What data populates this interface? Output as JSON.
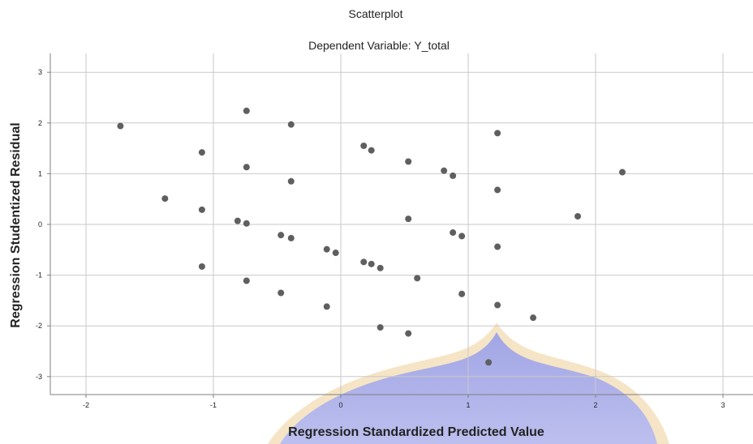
{
  "chart_data": {
    "type": "scatter",
    "title": "Scatterplot",
    "subtitle": "Dependent Variable: Y_total",
    "xlabel": "Regression Standardized Predicted Value",
    "ylabel": "Regression Studentized Residual",
    "xlim": [
      -2.3,
      3.1
    ],
    "ylim": [
      -3.3,
      3.3
    ],
    "xticks": [
      -2,
      -1,
      0,
      1,
      2,
      3
    ],
    "yticks": [
      -3,
      -2,
      -1,
      0,
      1,
      2,
      3
    ],
    "xtick_labels": [
      "-2",
      "-1",
      "0",
      "1",
      "2",
      "3"
    ],
    "ytick_labels": [
      "-3",
      "-2",
      "-1",
      "0",
      "1",
      "2",
      "3"
    ],
    "grid": true,
    "point_color": "#5f5f5f",
    "points": [
      {
        "x": -1.73,
        "y": 1.94
      },
      {
        "x": -1.38,
        "y": 0.51
      },
      {
        "x": -1.09,
        "y": 1.42
      },
      {
        "x": -1.09,
        "y": 0.29
      },
      {
        "x": -1.09,
        "y": -0.83
      },
      {
        "x": -0.81,
        "y": 0.07
      },
      {
        "x": -0.74,
        "y": 2.24
      },
      {
        "x": -0.74,
        "y": 1.13
      },
      {
        "x": -0.74,
        "y": 0.02
      },
      {
        "x": -0.74,
        "y": -1.11
      },
      {
        "x": -0.47,
        "y": -0.21
      },
      {
        "x": -0.47,
        "y": -1.35
      },
      {
        "x": -0.39,
        "y": 1.97
      },
      {
        "x": -0.39,
        "y": 0.85
      },
      {
        "x": -0.39,
        "y": -0.27
      },
      {
        "x": -0.11,
        "y": -0.49
      },
      {
        "x": -0.11,
        "y": -1.62
      },
      {
        "x": -0.04,
        "y": -0.56
      },
      {
        "x": 0.18,
        "y": 1.55
      },
      {
        "x": 0.18,
        "y": -0.74
      },
      {
        "x": 0.24,
        "y": 1.46
      },
      {
        "x": 0.24,
        "y": -0.78
      },
      {
        "x": 0.31,
        "y": -0.86
      },
      {
        "x": 0.31,
        "y": -2.03
      },
      {
        "x": 0.53,
        "y": 1.24
      },
      {
        "x": 0.53,
        "y": 0.11
      },
      {
        "x": 0.53,
        "y": -2.15
      },
      {
        "x": 0.6,
        "y": -1.06
      },
      {
        "x": 0.81,
        "y": 1.06
      },
      {
        "x": 0.88,
        "y": 0.96
      },
      {
        "x": 0.88,
        "y": -0.16
      },
      {
        "x": 0.95,
        "y": -0.23
      },
      {
        "x": 0.95,
        "y": -1.37
      },
      {
        "x": 1.16,
        "y": -2.72
      },
      {
        "x": 1.23,
        "y": 1.8
      },
      {
        "x": 1.23,
        "y": 0.68
      },
      {
        "x": 1.23,
        "y": -0.44
      },
      {
        "x": 1.23,
        "y": -1.59
      },
      {
        "x": 1.51,
        "y": -1.84
      },
      {
        "x": 1.86,
        "y": 0.16
      },
      {
        "x": 2.21,
        "y": 1.03
      }
    ]
  }
}
